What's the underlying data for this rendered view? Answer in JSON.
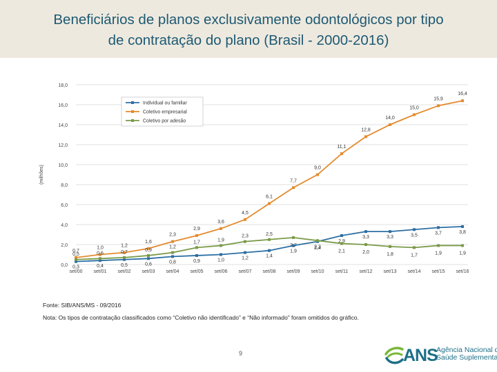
{
  "title": {
    "line1": "Beneficiários de planos exclusivamente odontológicos por tipo",
    "line2": "de contratação do plano (Brasil - 2000-2016)"
  },
  "chart_data": {
    "type": "line",
    "ylabel": "(milhões)",
    "ylim": [
      0,
      18
    ],
    "yticks": [
      "0,0",
      "2,0",
      "4,0",
      "6,0",
      "8,0",
      "10,0",
      "12,0",
      "14,0",
      "16,0",
      "18,0"
    ],
    "categories": [
      "set/00",
      "set/01",
      "set/02",
      "set/03",
      "set/04",
      "set/05",
      "set/06",
      "set/07",
      "set/08",
      "set/09",
      "set/10",
      "set/11",
      "set/12",
      "set/13",
      "set/14",
      "set/15",
      "set/16"
    ],
    "legend_position": "top-left",
    "series": [
      {
        "name": "Individual ou familiar",
        "color": "#2b6ea3",
        "values": [
          0.3,
          0.4,
          0.5,
          0.6,
          0.8,
          0.9,
          1.0,
          1.2,
          1.4,
          1.9,
          2.3,
          2.9,
          3.3,
          3.3,
          3.5,
          3.7,
          3.8
        ],
        "labels": [
          "0,3",
          "0,4",
          "0,5",
          "0,6",
          "0,8",
          "0,9",
          "1,0",
          "1,2",
          "1,4",
          "1,9",
          "2,3",
          "2,9",
          "3,3",
          "3,3",
          "3,5",
          "3,7",
          "3,8"
        ]
      },
      {
        "name": "Coletivo empresarial",
        "color": "#e58a2c",
        "values": [
          0.7,
          1.0,
          1.2,
          1.6,
          2.3,
          2.9,
          3.6,
          4.5,
          6.1,
          7.7,
          9.0,
          11.1,
          12.8,
          14.0,
          15.0,
          15.9,
          16.4
        ],
        "labels": [
          "0,7",
          "1,0",
          "1,2",
          "1,6",
          "2,3",
          "2,9",
          "3,6",
          "4,5",
          "6,1",
          "7,7",
          "9,0",
          "11,1",
          "12,8",
          "14,0",
          "15,0",
          "15,9",
          "16,4"
        ]
      },
      {
        "name": "Coletivo por adesão",
        "color": "#7a9a48",
        "values": [
          0.5,
          0.6,
          0.7,
          0.9,
          1.2,
          1.7,
          1.9,
          2.3,
          2.5,
          2.7,
          2.4,
          2.1,
          2.0,
          1.8,
          1.7,
          1.9,
          1.9
        ],
        "labels": [
          "0,5",
          "0,6",
          "0,7",
          "0,9",
          "1,2",
          "1,7",
          "1,9",
          "2,3",
          "2,5",
          "2,7",
          "2,4",
          "2,1",
          "2,0",
          "1,8",
          "1,7",
          "1,9",
          "1,9"
        ]
      }
    ]
  },
  "notes": {
    "source": "Fonte: SIB/ANS/MS - 09/2016",
    "note": "Nota: Os tipos de contratação classificados como “Coletivo não identificado” e “Não informado” foram omitidos do gráfico."
  },
  "page_number": "9",
  "logo": {
    "brand": "ANS",
    "line1": "Agência Nacional de",
    "line2": "Saúde Suplementar",
    "color_dark": "#1d6f88",
    "color_green": "#79b83a"
  }
}
